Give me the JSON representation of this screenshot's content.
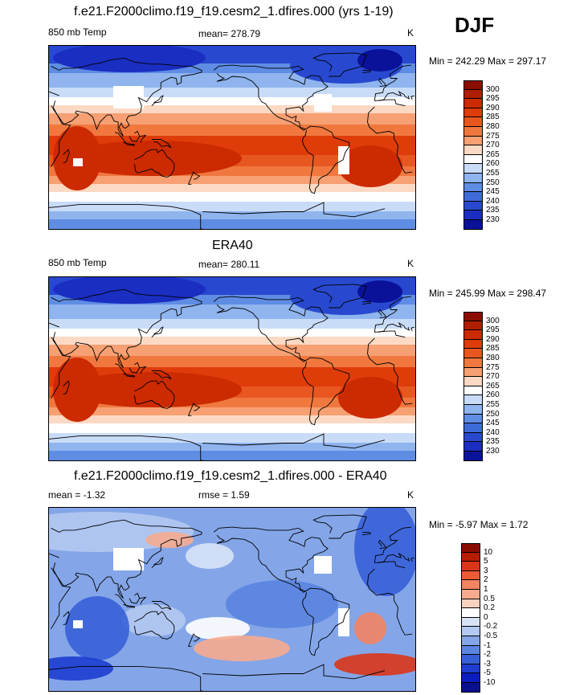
{
  "season": "DJF",
  "panels": [
    {
      "title": "f.e21.F2000climo.f19_f19.cesm2_1.dfires.000 (yrs 1-19)",
      "left_label": "850 mb Temp",
      "center_label": "mean= 278.79",
      "right_label": "K",
      "minmax": "Min = 242.29 Max = 297.17",
      "scale": [
        "300",
        "295",
        "290",
        "285",
        "280",
        "275",
        "270",
        "265",
        "260",
        "255",
        "250",
        "245",
        "240",
        "235",
        "230"
      ],
      "type": "abs",
      "missing": true
    },
    {
      "title": "ERA40",
      "left_label": "850 mb Temp",
      "center_label": "mean= 280.11",
      "right_label": "K",
      "minmax": "Min = 245.99 Max = 298.47",
      "scale": [
        "300",
        "295",
        "290",
        "285",
        "280",
        "275",
        "270",
        "265",
        "260",
        "255",
        "250",
        "245",
        "240",
        "235",
        "230"
      ],
      "type": "abs",
      "missing": false
    },
    {
      "title": "f.e21.F2000climo.f19_f19.cesm2_1.dfires.000 - ERA40",
      "left_label": "mean =  -1.32",
      "center_label": "rmse =   1.59",
      "right_label": "K",
      "minmax": "Min =  -5.97 Max =   1.72",
      "scale": [
        "10",
        "5",
        "3",
        "2",
        "1",
        "0.5",
        "0.2",
        "0",
        "-0.2",
        "-0.5",
        "-1",
        "-2",
        "-3",
        "-5",
        "-10"
      ],
      "type": "diff",
      "missing": true
    }
  ],
  "colors": {
    "abs": [
      "#8b0d00",
      "#b01e00",
      "#cc2a00",
      "#df3c0a",
      "#e95720",
      "#f0783e",
      "#f6a073",
      "#fcd9c4",
      "#ffffff",
      "#c9dcf7",
      "#8fb4ee",
      "#5f8de3",
      "#3f6ad9",
      "#2849cf",
      "#1a2ec2",
      "#0a129a"
    ],
    "diff": [
      "#8b0d00",
      "#b81c00",
      "#d9361a",
      "#ec5a36",
      "#f28462",
      "#f6ab8f",
      "#fad0bf",
      "#ffffff",
      "#d7e3f7",
      "#b3c9f1",
      "#84a6e8",
      "#5a84e0",
      "#3760d8",
      "#1d3ed0",
      "#0b1dbf",
      "#0a0f8f"
    ]
  }
}
